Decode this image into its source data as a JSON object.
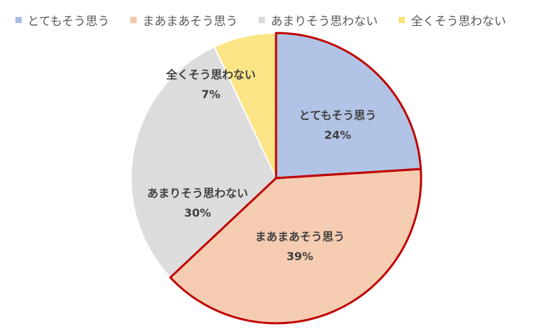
{
  "chart_data": {
    "type": "pie",
    "categories": [
      "とてもそう思う",
      "まあまあそう思う",
      "あまりそう思わない",
      "全くそう思わない"
    ],
    "values": [
      24,
      39,
      30,
      7
    ],
    "value_labels": [
      "24%",
      "39%",
      "30%",
      "7%"
    ],
    "colors": [
      "#a9bde3",
      "#f4c7a9",
      "#d9d9d9",
      "#fbe27a"
    ],
    "highlight_color": "#c00000",
    "highlighted_slices": [
      "とてもそう思う",
      "まあまあそう思う"
    ],
    "legend_position": "top-left"
  }
}
